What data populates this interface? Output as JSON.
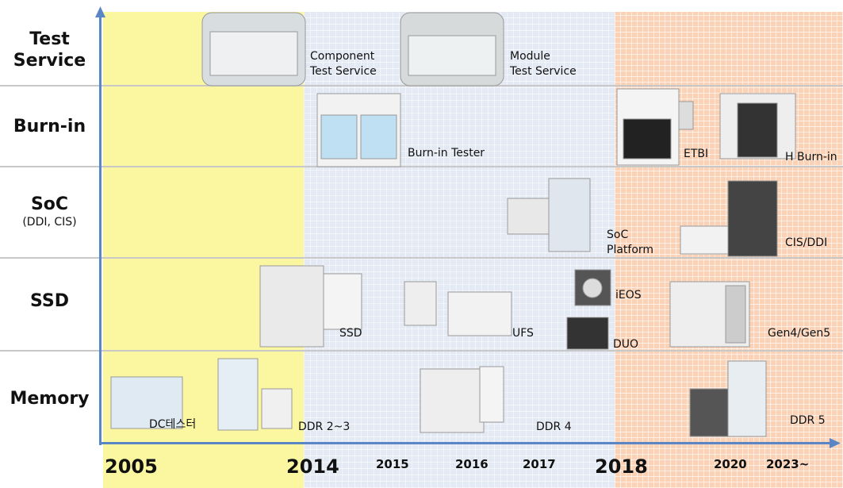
{
  "rows": [
    {
      "lines": [
        "Test",
        "Service"
      ]
    },
    {
      "lines": [
        "Burn-in"
      ]
    },
    {
      "lines": [
        "SoC"
      ],
      "sub": "(DDI, CIS)"
    },
    {
      "lines": [
        "SSD"
      ]
    },
    {
      "lines": [
        "Memory"
      ]
    }
  ],
  "years": [
    "2005",
    "2014",
    "2015",
    "2016",
    "2017",
    "2018",
    "2020",
    "2023~"
  ],
  "products": [
    {
      "lines": [
        "Component",
        "Test Service"
      ]
    },
    {
      "lines": [
        "Module",
        "Test Service"
      ]
    },
    {
      "lines": [
        "Burn-in Tester"
      ]
    },
    {
      "lines": [
        "ETBI"
      ]
    },
    {
      "lines": [
        "H Burn-in"
      ]
    },
    {
      "lines": [
        "SoC",
        "Platform"
      ]
    },
    {
      "lines": [
        "CIS/DDI"
      ]
    },
    {
      "lines": [
        "SSD"
      ]
    },
    {
      "lines": [
        "UFS"
      ]
    },
    {
      "lines": [
        "iEOS"
      ]
    },
    {
      "lines": [
        "DUO"
      ]
    },
    {
      "lines": [
        "Gen4/Gen5"
      ]
    },
    {
      "lines": [
        "DC테스터"
      ]
    },
    {
      "lines": [
        "DDR 2~3"
      ]
    },
    {
      "lines": [
        "DDR 4"
      ]
    },
    {
      "lines": [
        "DDR 5"
      ]
    }
  ]
}
